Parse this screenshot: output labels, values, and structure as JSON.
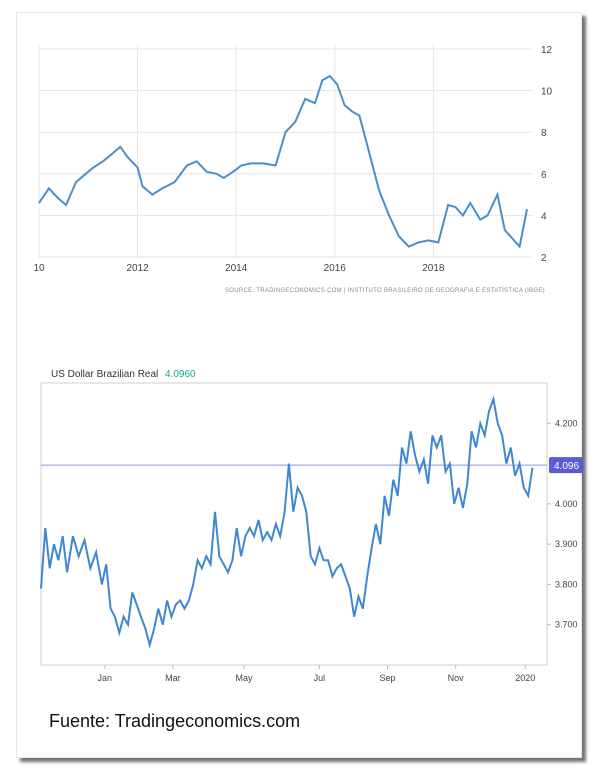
{
  "footer": {
    "text": "Fuente: Tradingeconomics.com"
  },
  "colors": {
    "line": "#4a8fc9",
    "line2": "#3f88d0",
    "grid": "#e5e5e5",
    "refline": "#8f8fe8",
    "badge": "#5b5bd8",
    "green": "#19a38f"
  },
  "chart_data": [
    {
      "type": "line",
      "source": "SOURCE: TRADINGECONOMICS.COM | INSTITUTO BRASILEIRO DE GEOGRAFIA E ESTATÍSTICA (IBGE)",
      "x_tick_labels": [
        "10",
        "2012",
        "2014",
        "2016",
        "2018"
      ],
      "x_tick_years": [
        2010,
        2012,
        2014,
        2016,
        2018
      ],
      "y_tick_labels": [
        "2",
        "4",
        "6",
        "8",
        "10",
        "12"
      ],
      "ylim": [
        2,
        12
      ],
      "xlim": [
        2010,
        2019.9
      ],
      "series": [
        {
          "x": [
            2010.0,
            2010.2,
            2010.4,
            2010.55,
            2010.75,
            2010.95,
            2011.1,
            2011.3,
            2011.45,
            2011.65,
            2011.8,
            2012.0,
            2012.1,
            2012.3,
            2012.5,
            2012.75,
            2013.0,
            2013.2,
            2013.4,
            2013.6,
            2013.75,
            2014.0,
            2014.1,
            2014.3,
            2014.55,
            2014.8,
            2015.0,
            2015.2,
            2015.4,
            2015.6,
            2015.75,
            2015.9,
            2016.05,
            2016.2,
            2016.35,
            2016.5,
            2016.7,
            2016.9,
            2017.1,
            2017.3,
            2017.5,
            2017.7,
            2017.9,
            2018.1,
            2018.3,
            2018.45,
            2018.6,
            2018.75,
            2018.95,
            2019.1,
            2019.3,
            2019.45,
            2019.6,
            2019.75,
            2019.9
          ],
          "y": [
            4.6,
            5.3,
            4.8,
            4.5,
            5.6,
            6.0,
            6.3,
            6.6,
            6.9,
            7.3,
            6.8,
            6.3,
            5.4,
            5.0,
            5.3,
            5.6,
            6.4,
            6.6,
            6.1,
            6.0,
            5.8,
            6.2,
            6.4,
            6.5,
            6.5,
            6.4,
            8.0,
            8.5,
            9.6,
            9.4,
            10.5,
            10.7,
            10.3,
            9.3,
            9.0,
            8.8,
            7.0,
            5.2,
            4.0,
            3.0,
            2.5,
            2.7,
            2.8,
            2.7,
            4.5,
            4.4,
            4.0,
            4.6,
            3.8,
            4.0,
            5.0,
            3.3,
            2.9,
            2.5,
            4.3
          ]
        }
      ]
    },
    {
      "type": "line",
      "title": "US Dollar Brazilian Real",
      "current_value": "4.0960",
      "badge": "4.096",
      "reference_value": 4.096,
      "x_tick_labels": [
        "Jan",
        "Mar",
        "May",
        "Jul",
        "Sep",
        "Nov",
        "2020"
      ],
      "x_tick_days": [
        44,
        91,
        140,
        192,
        239,
        286,
        334
      ],
      "y_tick_labels": [
        "3.700",
        "3.800",
        "3.900",
        "4.000",
        "4.200"
      ],
      "y_tick_values": [
        3.7,
        3.8,
        3.9,
        4.0,
        4.2
      ],
      "ylim": [
        3.6,
        4.3
      ],
      "xlim": [
        0,
        349
      ],
      "series": [
        {
          "x": [
            0,
            3,
            6,
            9,
            12,
            15,
            18,
            22,
            26,
            30,
            34,
            38,
            42,
            45,
            48,
            51,
            54,
            57,
            60,
            63,
            66,
            69,
            72,
            75,
            78,
            81,
            84,
            87,
            90,
            93,
            96,
            99,
            102,
            105,
            108,
            111,
            114,
            117,
            120,
            123,
            126,
            129,
            132,
            135,
            138,
            141,
            144,
            147,
            150,
            153,
            156,
            159,
            162,
            165,
            168,
            171,
            174,
            177,
            180,
            183,
            186,
            189,
            192,
            195,
            198,
            201,
            204,
            207,
            210,
            213,
            216,
            219,
            222,
            225,
            228,
            231,
            234,
            237,
            240,
            243,
            246,
            249,
            252,
            255,
            258,
            261,
            264,
            267,
            270,
            273,
            276,
            279,
            282,
            285,
            288,
            291,
            294,
            297,
            300,
            303,
            306,
            309,
            312,
            315,
            318,
            321,
            324,
            327,
            330,
            333,
            336,
            339
          ],
          "y": [
            3.79,
            3.94,
            3.84,
            3.9,
            3.86,
            3.92,
            3.83,
            3.92,
            3.87,
            3.91,
            3.84,
            3.88,
            3.8,
            3.85,
            3.74,
            3.72,
            3.68,
            3.72,
            3.7,
            3.78,
            3.75,
            3.72,
            3.69,
            3.65,
            3.69,
            3.74,
            3.7,
            3.76,
            3.72,
            3.75,
            3.76,
            3.74,
            3.76,
            3.8,
            3.86,
            3.84,
            3.87,
            3.85,
            3.98,
            3.87,
            3.85,
            3.83,
            3.86,
            3.94,
            3.87,
            3.92,
            3.94,
            3.92,
            3.96,
            3.91,
            3.93,
            3.91,
            3.95,
            3.92,
            3.98,
            4.1,
            3.98,
            4.04,
            4.02,
            3.98,
            3.87,
            3.85,
            3.89,
            3.86,
            3.86,
            3.82,
            3.84,
            3.85,
            3.82,
            3.79,
            3.72,
            3.77,
            3.74,
            3.82,
            3.89,
            3.95,
            3.9,
            4.02,
            3.97,
            4.06,
            4.02,
            4.14,
            4.1,
            4.18,
            4.12,
            4.08,
            4.11,
            4.05,
            4.17,
            4.14,
            4.17,
            4.08,
            4.1,
            4.0,
            4.04,
            3.99,
            4.05,
            4.18,
            4.14,
            4.2,
            4.17,
            4.23,
            4.26,
            4.2,
            4.17,
            4.1,
            4.14,
            4.07,
            4.1,
            4.04,
            4.02,
            4.09
          ]
        }
      ]
    }
  ]
}
